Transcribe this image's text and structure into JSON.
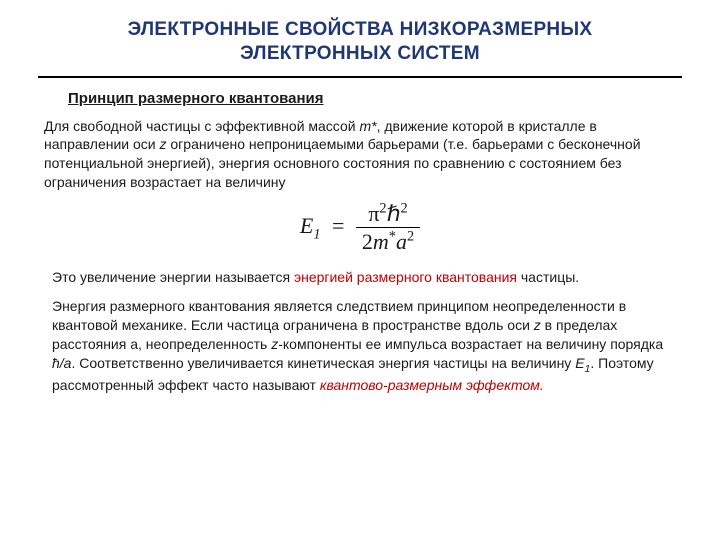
{
  "title_line1": "ЭЛЕКТРОННЫЕ СВОЙСТВА НИЗКОРАЗМЕРНЫХ",
  "title_line2": "ЭЛЕКТРОННЫХ СИСТЕМ",
  "subtitle": "Принцип размерного квантования",
  "para1_a": "Для свободной частицы с эффективной массой ",
  "para1_mstar": "m*",
  "para1_b": ", движение которой в кристалле в направлении оси ",
  "para1_z": "z",
  "para1_c": " ограничено непроницаемыми барьерами (т.е. барьерами с бесконечной потенциальной энергией), энергия основного состояния по сравнению с состоянием без ограничения возрастает на величину",
  "formula": {
    "lhs_var": "E",
    "lhs_sub": "1",
    "num_pi": "π",
    "num_pi_sup": "2",
    "num_hbar": "ℏ",
    "num_hbar_sup": "2",
    "den_two": "2",
    "den_m": "m",
    "den_star": "*",
    "den_a": "a",
    "den_a_sup": "2"
  },
  "para2_a": "Это увеличение энергии называется ",
  "para2_hl": "энергией размерного квантования",
  "para2_b": " частицы.",
  "para3_a": "Энергия размерного квантования является следствием принципом неопределенности в квантовой механике. Если частица ограничена в пространстве вдоль оси ",
  "para3_z": "z",
  "para3_b": " в пределах расстояния а, неопределенность ",
  "para3_zc": "z",
  "para3_c": "-компоненты ее импульса возрастает на величину порядка ",
  "para3_hbara": "ħ/a",
  "para3_d": ". Соответственно увеличивается кинетическая энергия частицы на величину ",
  "para3_E": "E",
  "para3_E_sub": "1",
  "para3_e": ". Поэтому рассмотренный эффект часто называют ",
  "para3_hl": "квантово-размерным эффектом.",
  "colors": {
    "title": "#1f3875",
    "highlight": "#c00000",
    "text": "#1a1a1a",
    "rule": "#000000",
    "background": "#ffffff"
  }
}
